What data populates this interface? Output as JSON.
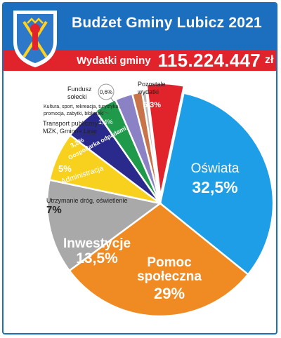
{
  "header": {
    "title": "Budżet Gminy Lubicz 2021",
    "amount_label": "Wydatki gminy",
    "amount_value": "115.224.447",
    "amount_unit": "zł"
  },
  "colors": {
    "header_blue": "#1c6fbf",
    "header_red": "#e1232b"
  },
  "chart_data": {
    "type": "pie",
    "title": "Budżet Gminy Lubicz 2021",
    "unit": "%",
    "slices": [
      {
        "label": "Oświata",
        "label_lines": [
          "Oświata"
        ],
        "value": 32.5,
        "display": "32,5%",
        "color": "#1e9ee6"
      },
      {
        "label": "Pomoc społeczna",
        "label_lines": [
          "Pomoc",
          "społeczna"
        ],
        "value": 29,
        "display": "29%",
        "color": "#f08a22"
      },
      {
        "label": "Inwestycje",
        "label_lines": [
          "Inwestycje"
        ],
        "value": 13.5,
        "display": "13,5%",
        "color": "#a9a9a9"
      },
      {
        "label": "Utrzymanie dróg, oświetlenie",
        "label_lines": [
          "Utrzymanie dróg, oświetlenie"
        ],
        "value": 7,
        "display": "7%",
        "color": "#f7d11e"
      },
      {
        "label": "Administracja",
        "label_lines": [
          "Administracja"
        ],
        "value": 5,
        "display": "5%",
        "color": "#2a2a8c"
      },
      {
        "label": "Gospodarka odpadami",
        "label_lines": [
          "Gospodarka odpadami"
        ],
        "value": 3.2,
        "display": "3,2%",
        "color": "#1e9a4a"
      },
      {
        "label": "Transport publiczny MZK, Gminne Linie",
        "label_lines": [
          "Transport publiczny",
          "MZK, Gminne Linie"
        ],
        "value": 2.5,
        "display": "2,5%",
        "color": "#8a82c4"
      },
      {
        "label": "Kultura, sport, rekreacja, turystyka, promocja, zabytki, biblioteki",
        "label_lines": [
          "Kultura, sport, rekreacja, turystyka,",
          "promocja, zabytki, biblioteki"
        ],
        "value": 1.4,
        "display": "1,4%",
        "color": "#c8734a"
      },
      {
        "label": "Fundusz sołecki",
        "label_lines": [
          "Fundusz",
          "sołecki"
        ],
        "value": 0.6,
        "display": "0,6%",
        "color": "#bdbdbd"
      },
      {
        "label": "Pozostałe wydatki",
        "label_lines": [
          "Pozostałe",
          "wydatki"
        ],
        "value": 5.3,
        "display": "5,3%",
        "color": "#e1232b"
      }
    ]
  }
}
